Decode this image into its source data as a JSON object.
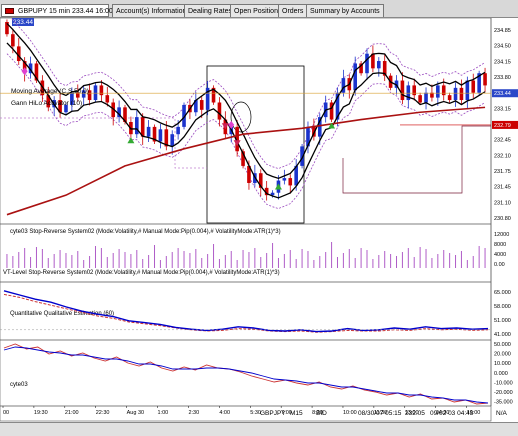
{
  "chart_title": "GBPUPY 15 min 233.44 16:00:00",
  "tabs": [
    "Account(s) Information",
    "Dealing Rates",
    "Open Positions",
    "Orders",
    "Summary by Accounts"
  ],
  "price_badge": "233.44",
  "main_labels": {
    "ma": "Moving Average (C,S,50,0)",
    "gann": "Gann HiLo Activator (10)"
  },
  "price_ticks": [
    "234.85",
    "234.50",
    "234.15",
    "233.80",
    "233.44",
    "233.15",
    "232.79",
    "232.45",
    "232.10",
    "231.75",
    "231.45",
    "231.10",
    "230.80"
  ],
  "price_current": "233.44",
  "price_line2": "232.79",
  "panel_labels": {
    "p1": "cyte03 Stop-Reverse System02 (Mode:Volatility,# Manual Mode:Pip(0.004),# VolatilityMode:ATR(1)*3)",
    "p2": "VT-Level Stop-Reverse System02 (Mode:Volatility,# Manual Mode:Pip(0.004),# VolatilityMode:ATR(1)*3)",
    "p3": "Quantitative Qualitative Estimation (60)",
    "p4": "cyte03"
  },
  "p1_ticks": [
    "12000",
    "8000",
    "4000",
    "0.00"
  ],
  "p2_ticks": [
    "65.000",
    "58.000",
    "51.000",
    "41.000"
  ],
  "p3_ticks": [
    "50.000",
    "20.000",
    "10.000",
    "0.000",
    "-10.000",
    "-20.000",
    "-35.000"
  ],
  "x_ticks": [
    "00",
    "19:30",
    "21:00",
    "22:30",
    "Aug 30",
    "1:00",
    "2:30",
    "4:00",
    "5:30",
    "7:00",
    "8:30",
    "10:00",
    "11:30",
    "13:00",
    "14:30",
    "16:00"
  ],
  "status": {
    "symbol": "GBPJPY",
    "tf": "M15",
    "bid": "BID",
    "time": "08/30/07 05:15",
    "price": "232.05",
    "time2": "09/02 03 04:43",
    "na": "N/A"
  },
  "colors": {
    "bull": "#1a33cc",
    "bear": "#cc0000",
    "ma": "#aa1111",
    "envelope": "#000000",
    "gann": "#9b4cc0",
    "arrow_up": "#33aa33",
    "arrow_down": "#cc2255",
    "volume": "#b05cc8",
    "fast": "#0000cc",
    "slow": "#cc3333"
  },
  "price_range": [
    230.8,
    234.9
  ],
  "series": {
    "closes": [
      234.65,
      234.4,
      234.1,
      233.85,
      234.05,
      233.7,
      233.4,
      233.15,
      233.3,
      233.05,
      233.2,
      233.45,
      233.35,
      233.5,
      233.3,
      233.6,
      233.4,
      233.25,
      232.95,
      233.15,
      232.85,
      232.6,
      232.95,
      232.55,
      232.75,
      232.45,
      232.7,
      232.35,
      232.6,
      232.75,
      233.2,
      233.05,
      233.3,
      233.1,
      233.55,
      233.25,
      232.9,
      232.6,
      232.75,
      232.25,
      231.95,
      231.6,
      231.8,
      231.5,
      231.35,
      231.4,
      231.65,
      231.7,
      231.55,
      231.95,
      232.35,
      232.75,
      232.55,
      232.95,
      233.25,
      232.9,
      233.45,
      233.75,
      233.5,
      234.05,
      233.85,
      234.25,
      233.95,
      234.1,
      233.8,
      233.55,
      233.7,
      233.3,
      233.6,
      233.4,
      233.25,
      233.45,
      233.35,
      233.6,
      233.4,
      233.3,
      233.55,
      233.3,
      233.7,
      233.45,
      233.85,
      233.6
    ],
    "moving_average": [
      [
        0,
        230.95
      ],
      [
        10,
        231.35
      ],
      [
        20,
        231.95
      ],
      [
        30,
        232.3
      ],
      [
        40,
        232.6
      ],
      [
        50,
        232.72
      ],
      [
        60,
        232.9
      ],
      [
        70,
        233.05
      ],
      [
        81,
        233.15
      ]
    ],
    "qqe_fast": [
      60.2,
      59.5,
      58.8,
      58.3,
      57.5,
      56.8,
      56.3,
      55.9,
      55.2,
      54.9,
      54.6,
      54.1,
      53.8,
      53.6,
      53.8,
      54.2,
      54.0,
      53.6,
      53.5,
      53.7,
      53.4,
      53.5,
      53.9,
      53.6,
      53.7,
      54.0,
      53.8,
      54.2,
      53.9,
      54.0,
      53.8,
      53.9
    ],
    "qqe_slow": [
      59.6,
      59.1,
      58.4,
      57.8,
      57.2,
      56.6,
      56.0,
      55.6,
      55.0,
      54.7,
      54.4,
      54.0,
      53.7,
      53.5,
      53.6,
      53.9,
      53.8,
      53.5,
      53.4,
      53.5,
      53.3,
      53.4,
      53.6,
      53.5,
      53.5,
      53.7,
      53.6,
      53.9,
      53.7,
      53.8,
      53.6,
      53.7
    ],
    "osc_fast": [
      25,
      29,
      24,
      26,
      19,
      22,
      17,
      20,
      15,
      12,
      16,
      10,
      7,
      11,
      5,
      2,
      6,
      3,
      8,
      5,
      4,
      1,
      -3,
      -6,
      -9,
      -7,
      -10,
      -12,
      -9,
      -14,
      -16,
      -13,
      -17,
      -19,
      -22,
      -20,
      -24,
      -21,
      -26,
      -25,
      -29,
      -27,
      -31,
      -30
    ],
    "osc_slow": [
      23,
      26,
      25,
      23,
      21,
      20,
      18,
      18,
      16,
      14,
      14,
      12,
      9,
      9,
      7,
      4,
      4,
      4,
      5,
      5,
      4,
      2,
      0,
      -3,
      -6,
      -7,
      -8,
      -10,
      -10,
      -12,
      -14,
      -14,
      -16,
      -18,
      -20,
      -20,
      -22,
      -22,
      -24,
      -25,
      -27,
      -27,
      -29,
      -30
    ]
  },
  "markers": {
    "up_arrows": [
      21,
      46,
      55
    ],
    "down_arrows": [
      37,
      39
    ],
    "pink_diamonds": [
      3,
      38
    ]
  }
}
